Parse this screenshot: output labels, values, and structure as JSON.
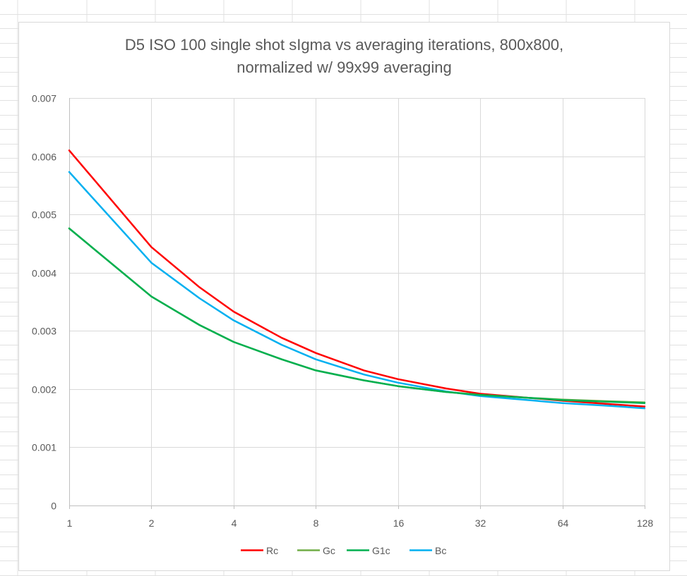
{
  "chart_data": {
    "type": "line",
    "title_line1": "D5 ISO 100 single shot sIgma vs averaging iterations, 800x800,",
    "title_line2": "normalized w/ 99x99 averaging",
    "xlabel": "",
    "ylabel": "",
    "x_scale": "log2",
    "xlim": [
      1,
      128
    ],
    "ylim": [
      0,
      0.007
    ],
    "x_ticks": [
      1,
      2,
      4,
      8,
      16,
      32,
      64,
      128
    ],
    "x_tick_labels": [
      "1",
      "2",
      "4",
      "8",
      "16",
      "32",
      "64",
      "128"
    ],
    "y_ticks": [
      0,
      0.001,
      0.002,
      0.003,
      0.004,
      0.005,
      0.006,
      0.007
    ],
    "y_tick_labels": [
      "0",
      "0.001",
      "0.002",
      "0.003",
      "0.004",
      "0.005",
      "0.006",
      "0.007"
    ],
    "grid": true,
    "legend_position": "bottom",
    "x": [
      1,
      2,
      3,
      4,
      6,
      8,
      12,
      16,
      24,
      32,
      48,
      64,
      96,
      128
    ],
    "series": [
      {
        "name": "Rc",
        "color": "#ff0000",
        "values": [
          0.0061,
          0.00444,
          0.00375,
          0.00333,
          0.00288,
          0.00262,
          0.00232,
          0.00217,
          0.00201,
          0.00192,
          0.00185,
          0.0018,
          0.00174,
          0.0017
        ]
      },
      {
        "name": "Gc",
        "color": "#70ad47",
        "values": [
          0.00476,
          0.00359,
          0.0031,
          0.00281,
          0.00251,
          0.00232,
          0.00215,
          0.00205,
          0.00195,
          0.0019,
          0.00185,
          0.00182,
          0.00179,
          0.00177
        ]
      },
      {
        "name": "G1c",
        "color": "#00b050",
        "values": [
          0.00476,
          0.00359,
          0.0031,
          0.00281,
          0.00251,
          0.00232,
          0.00215,
          0.00205,
          0.00195,
          0.0019,
          0.00185,
          0.00181,
          0.00178,
          0.00176
        ]
      },
      {
        "name": "Bc",
        "color": "#00b0f0",
        "values": [
          0.00573,
          0.00417,
          0.00356,
          0.00318,
          0.00276,
          0.00251,
          0.00225,
          0.00211,
          0.00196,
          0.00188,
          0.00181,
          0.00176,
          0.00171,
          0.00167
        ]
      }
    ]
  }
}
